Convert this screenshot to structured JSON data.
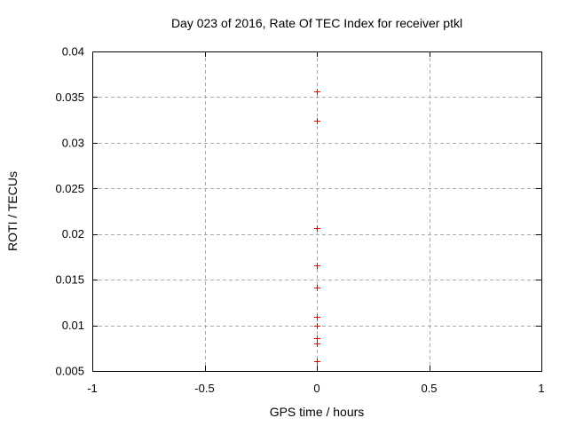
{
  "chart_data": {
    "type": "scatter",
    "title": "Day 023 of 2016, Rate Of TEC Index for receiver ptkl",
    "xlabel": "GPS time / hours",
    "ylabel": "ROTI / TECUs",
    "xlim": [
      -1,
      1
    ],
    "ylim": [
      0.005,
      0.04
    ],
    "xticks": [
      -1,
      -0.5,
      0,
      0.5,
      1
    ],
    "xtick_labels": [
      "-1",
      "-0.5",
      "0",
      "0.5",
      "1"
    ],
    "yticks": [
      0.005,
      0.01,
      0.015,
      0.02,
      0.025,
      0.03,
      0.035,
      0.04
    ],
    "ytick_labels": [
      "0.005",
      "0.01",
      "0.015",
      "0.02",
      "0.025",
      "0.03",
      "0.035",
      "0.04"
    ],
    "grid": true,
    "legend": "none",
    "series": [
      {
        "marker": "plus",
        "color": "#e60000",
        "points": [
          {
            "x": 0,
            "y": 0.0356
          },
          {
            "x": 0,
            "y": 0.0324
          },
          {
            "x": 0,
            "y": 0.0207
          },
          {
            "x": 0,
            "y": 0.0166
          },
          {
            "x": 0,
            "y": 0.0141
          },
          {
            "x": 0,
            "y": 0.0109
          },
          {
            "x": 0,
            "y": 0.01
          },
          {
            "x": 0,
            "y": 0.0086
          },
          {
            "x": 0,
            "y": 0.008
          },
          {
            "x": 0,
            "y": 0.0061
          }
        ]
      }
    ],
    "colors": {
      "background": "#ffffff",
      "frame": "#000000",
      "grid": "#a9a9a9",
      "marker": "#e60000",
      "text": "#000000"
    }
  }
}
